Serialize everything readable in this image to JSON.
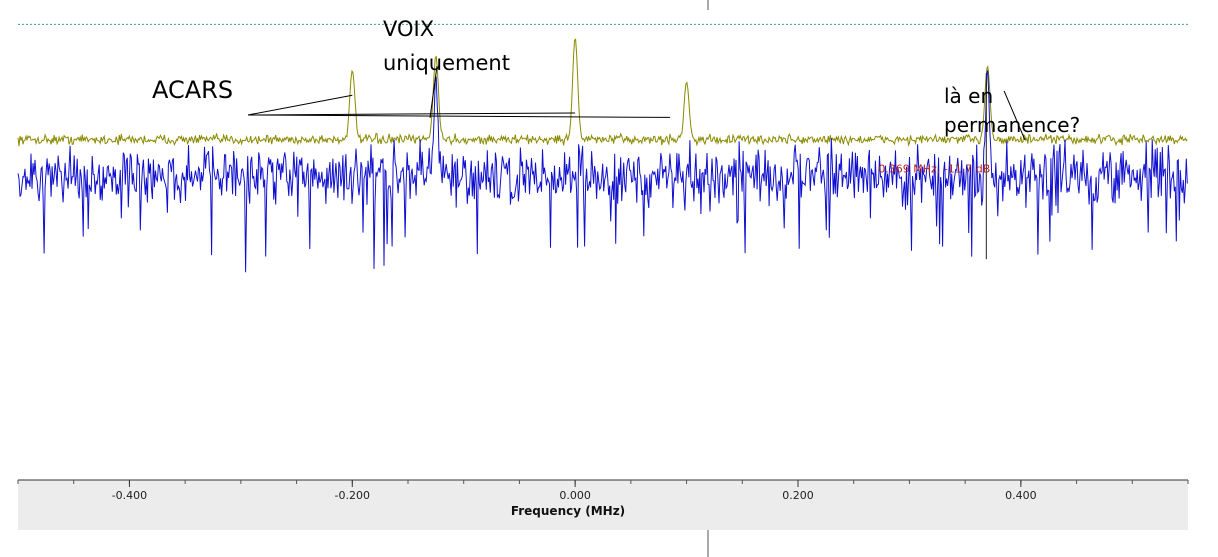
{
  "chart_data": {
    "type": "line",
    "title": "",
    "xlabel": "Frequency (MHz)",
    "ylabel": "",
    "xlim": [
      -0.5,
      0.55
    ],
    "ylim": [
      -35,
      0
    ],
    "x_ticks": [
      -0.4,
      -0.2,
      0.0,
      0.2,
      0.4
    ],
    "x_tick_labels": [
      "-0.400",
      "-0.200",
      "0.000",
      "0.200",
      "0.400"
    ],
    "grid": false,
    "legend": "none",
    "colors": {
      "max_hold": "#8a8a00",
      "live": "#1010d0",
      "marker": "#b22222",
      "reference_line": "#3aa88a",
      "axis_band": "#ececec"
    },
    "series": [
      {
        "noise_level": -13.5,
        "noise_spread": 0.8,
        "peaks": [
          {
            "x": -0.2,
            "level": -5.7
          },
          {
            "x": -0.125,
            "level": -4.0
          },
          {
            "x": 0.0,
            "level": -2.0
          },
          {
            "x": 0.1,
            "level": -7.0
          },
          {
            "x": 0.37,
            "level": -5.2
          }
        ]
      },
      {
        "noise_level": -17.5,
        "noise_spread": 4.5,
        "peaks": [
          {
            "x": -0.125,
            "level": -6.2
          },
          {
            "x": 0.37,
            "level": -5.4
          }
        ]
      }
    ],
    "marker": {
      "x": 0.369,
      "text": "0.369 MHz, -11.7 dB"
    },
    "reference_line_level": -0.5,
    "annotations": [
      {
        "lines": [
          "ACARS"
        ],
        "pointers": [
          {
            "x": -0.2,
            "level": -8.5
          },
          {
            "x": 0.0,
            "level": -10.5
          },
          {
            "x": 0.085,
            "level": -11.0
          }
        ]
      },
      {
        "lines": [
          "VOIX",
          "uniquement"
        ],
        "pointers": [
          {
            "x": -0.124,
            "level": -5.2
          }
        ]
      },
      {
        "lines": [
          "là en",
          "permanence?"
        ],
        "pointers": [
          {
            "x": 0.385,
            "level": -8.0
          }
        ]
      }
    ]
  }
}
